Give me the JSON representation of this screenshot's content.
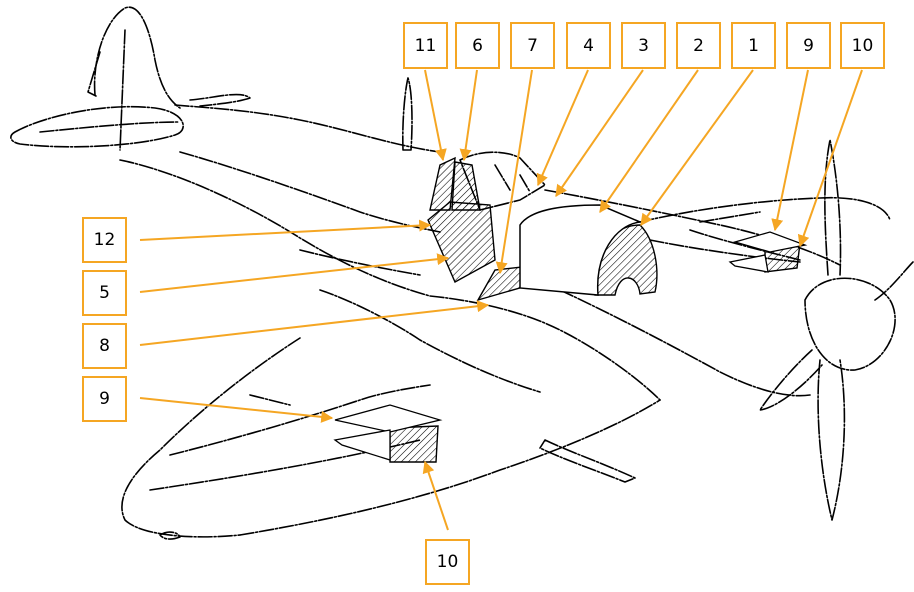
{
  "colors": {
    "accent": "#f5a623",
    "ink": "#000000",
    "background": "#ffffff"
  },
  "callouts": {
    "top": [
      "11",
      "6",
      "7",
      "4",
      "3",
      "2",
      "1",
      "9",
      "10"
    ],
    "left": [
      "12",
      "5",
      "8",
      "9"
    ],
    "bottom": [
      "10"
    ]
  }
}
